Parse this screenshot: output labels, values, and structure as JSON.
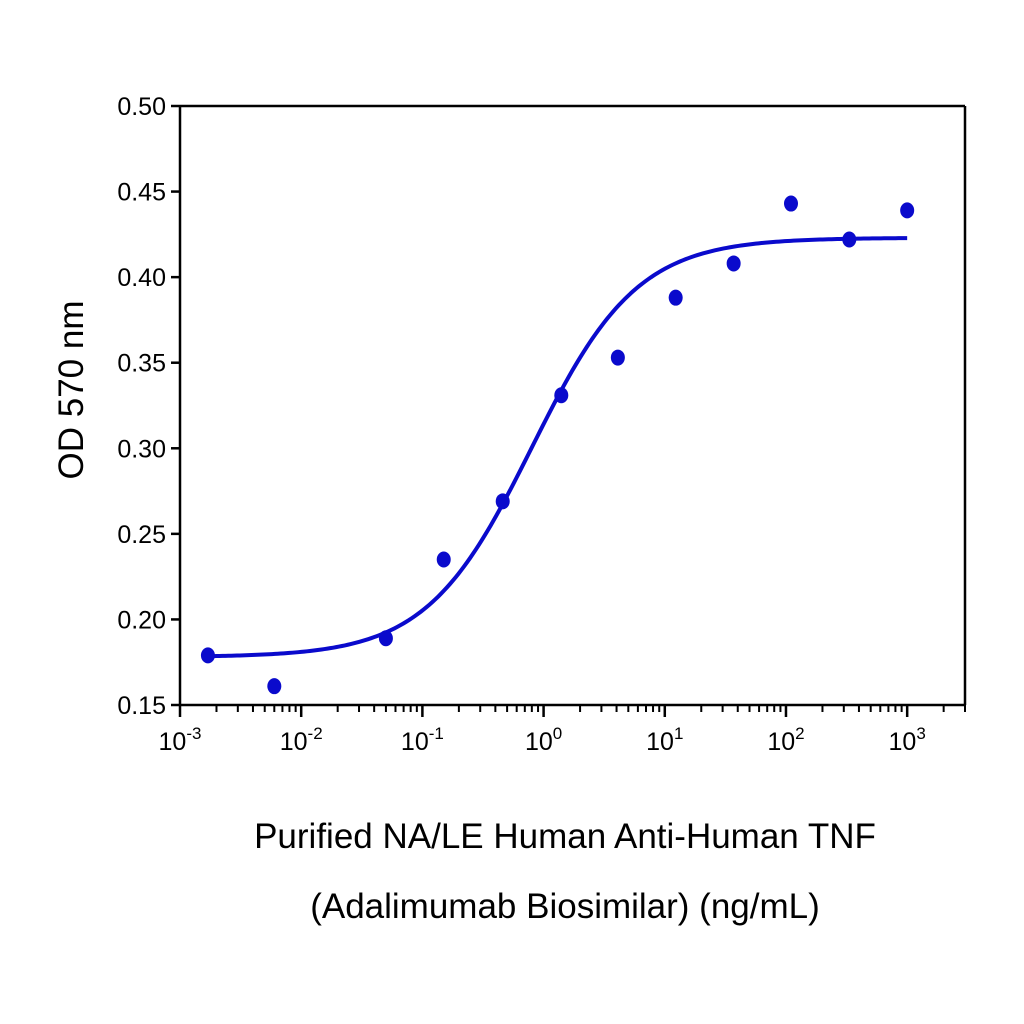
{
  "chart_data": {
    "type": "scatter",
    "xlabel": [
      "Purified NA/LE Human Anti-Human TNF",
      "(Adalimumab Biosimilar) (ng/mL)"
    ],
    "ylabel": "OD 570 nm",
    "x_scale": "log",
    "xlim": [
      0.001,
      3000
    ],
    "ylim": [
      0.15,
      0.5
    ],
    "x_ticks": [
      {
        "value": 0.001,
        "base": "10",
        "exp": "-3"
      },
      {
        "value": 0.01,
        "base": "10",
        "exp": "-2"
      },
      {
        "value": 0.1,
        "base": "10",
        "exp": "-1"
      },
      {
        "value": 1,
        "base": "10",
        "exp": "0"
      },
      {
        "value": 10,
        "base": "10",
        "exp": "1"
      },
      {
        "value": 100,
        "base": "10",
        "exp": "2"
      },
      {
        "value": 1000,
        "base": "10",
        "exp": "3"
      }
    ],
    "y_ticks": [
      {
        "value": 0.15,
        "label": "0.15"
      },
      {
        "value": 0.2,
        "label": "0.20"
      },
      {
        "value": 0.25,
        "label": "0.25"
      },
      {
        "value": 0.3,
        "label": "0.30"
      },
      {
        "value": 0.35,
        "label": "0.35"
      },
      {
        "value": 0.4,
        "label": "0.40"
      },
      {
        "value": 0.45,
        "label": "0.45"
      },
      {
        "value": 0.5,
        "label": "0.50"
      }
    ],
    "grid": false,
    "series": [
      {
        "kind": "points",
        "color": "#0A0ACC",
        "x": [
          0.0017,
          0.006,
          0.05,
          0.15,
          0.46,
          1.4,
          4.1,
          12.3,
          37,
          110,
          333,
          1000
        ],
        "y": [
          0.179,
          0.161,
          0.189,
          0.235,
          0.269,
          0.331,
          0.353,
          0.388,
          0.408,
          0.443,
          0.422,
          0.439
        ]
      },
      {
        "kind": "fit-curve",
        "color": "#0A0ACC",
        "model": "4PL",
        "bottom": 0.178,
        "top": 0.423,
        "ec50": 0.8,
        "hill": 1.0,
        "x_range": [
          0.0017,
          1000
        ]
      }
    ]
  }
}
